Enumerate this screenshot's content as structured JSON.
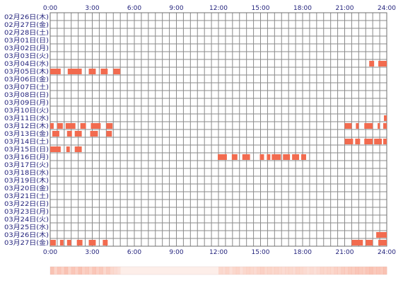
{
  "chart_data": {
    "type": "heatmap",
    "title": "",
    "xlabel": "",
    "ylabel": "",
    "x_unit": "hour of day",
    "xlim": [
      0,
      24
    ],
    "grid": true,
    "x_ticks": [
      0,
      3,
      6,
      9,
      12,
      15,
      18,
      21,
      24
    ],
    "x_tick_labels": [
      "0:00",
      "3:00",
      "6:00",
      "9:00",
      "12:00",
      "15:00",
      "18:00",
      "21:00",
      "24:00"
    ],
    "rows": [
      {
        "label": "02月26日(木)",
        "segments": []
      },
      {
        "label": "02月27日(金)",
        "segments": []
      },
      {
        "label": "02月28日(土)",
        "segments": []
      },
      {
        "label": "03月01日(日)",
        "segments": []
      },
      {
        "label": "03月02日(月)",
        "segments": []
      },
      {
        "label": "03月03日(火)",
        "segments": []
      },
      {
        "label": "03月04日(水)",
        "segments": [
          [
            22.75,
            23.1
          ],
          [
            23.4,
            24.0
          ]
        ]
      },
      {
        "label": "03月05日(木)",
        "segments": [
          [
            0.0,
            0.75
          ],
          [
            1.25,
            2.25
          ],
          [
            2.75,
            3.25
          ],
          [
            3.6,
            4.1
          ],
          [
            4.5,
            5.0
          ]
        ]
      },
      {
        "label": "03月06日(金)",
        "segments": []
      },
      {
        "label": "03月07日(土)",
        "segments": []
      },
      {
        "label": "03月08日(日)",
        "segments": []
      },
      {
        "label": "03月09日(月)",
        "segments": []
      },
      {
        "label": "03月10日(火)",
        "segments": []
      },
      {
        "label": "03月11日(水)",
        "segments": [
          [
            23.8,
            24.0
          ]
        ]
      },
      {
        "label": "03月12日(木)",
        "segments": [
          [
            0.0,
            0.25
          ],
          [
            0.5,
            0.9
          ],
          [
            1.1,
            1.8
          ],
          [
            2.15,
            2.55
          ],
          [
            2.9,
            3.6
          ],
          [
            4.0,
            4.45
          ],
          [
            21.0,
            21.5
          ],
          [
            21.8,
            22.0
          ],
          [
            22.4,
            23.0
          ],
          [
            23.35,
            23.5
          ],
          [
            23.75,
            24.0
          ]
        ]
      },
      {
        "label": "03月13日(金)",
        "segments": [
          [
            0.15,
            0.65
          ],
          [
            1.2,
            1.55
          ],
          [
            1.75,
            2.25
          ],
          [
            2.85,
            3.4
          ],
          [
            4.0,
            4.4
          ]
        ]
      },
      {
        "label": "03月14日(土)",
        "segments": [
          [
            21.0,
            21.6
          ],
          [
            21.75,
            22.1
          ],
          [
            22.4,
            23.0
          ],
          [
            23.1,
            23.65
          ],
          [
            23.75,
            24.0
          ]
        ]
      },
      {
        "label": "03月15日(日)",
        "segments": [
          [
            0.0,
            0.75
          ],
          [
            1.15,
            1.4
          ],
          [
            1.75,
            2.25
          ]
        ]
      },
      {
        "label": "03月16日(月)",
        "segments": [
          [
            11.95,
            12.6
          ],
          [
            12.95,
            13.35
          ],
          [
            13.7,
            14.25
          ],
          [
            14.95,
            15.25
          ],
          [
            15.45,
            15.7
          ],
          [
            15.8,
            16.45
          ],
          [
            16.6,
            17.1
          ],
          [
            17.25,
            17.75
          ],
          [
            17.9,
            18.25
          ]
        ]
      },
      {
        "label": "03月17日(火)",
        "segments": []
      },
      {
        "label": "03月18日(水)",
        "segments": []
      },
      {
        "label": "03月19日(木)",
        "segments": []
      },
      {
        "label": "03月20日(金)",
        "segments": []
      },
      {
        "label": "03月21日(土)",
        "segments": []
      },
      {
        "label": "03月22日(日)",
        "segments": []
      },
      {
        "label": "03月23日(月)",
        "segments": []
      },
      {
        "label": "03月24日(火)",
        "segments": []
      },
      {
        "label": "03月25日(水)",
        "segments": []
      },
      {
        "label": "03月26日(木)",
        "segments": [
          [
            23.25,
            24.0
          ]
        ]
      },
      {
        "label": "03月27日(金)",
        "segments": [
          [
            0.0,
            0.4
          ],
          [
            0.7,
            0.95
          ],
          [
            1.2,
            1.5
          ],
          [
            1.9,
            2.3
          ],
          [
            2.75,
            3.25
          ],
          [
            3.75,
            4.1
          ],
          [
            21.5,
            22.3
          ],
          [
            22.5,
            23.0
          ],
          [
            23.4,
            24.0
          ]
        ]
      }
    ],
    "summary_strip": {
      "bins_per_hour": 4,
      "intensity": [
        0.6,
        0.35,
        0.55,
        0.4,
        0.6,
        0.35,
        0.55,
        0.4,
        0.6,
        0.4,
        0.5,
        0.35,
        0.55,
        0.4,
        0.5,
        0.3,
        0.45,
        0.3,
        0.25,
        0.2,
        0,
        0,
        0,
        0,
        0,
        0,
        0,
        0,
        0,
        0,
        0,
        0,
        0,
        0,
        0,
        0,
        0,
        0,
        0,
        0,
        0,
        0,
        0,
        0,
        0,
        0,
        0,
        0,
        0.3,
        0.25,
        0.35,
        0.2,
        0.3,
        0.35,
        0.2,
        0.3,
        0.35,
        0.3,
        0.25,
        0.35,
        0.4,
        0.3,
        0.35,
        0.3,
        0.35,
        0.3,
        0.25,
        0.3,
        0.3,
        0.25,
        0.35,
        0.3,
        0.25,
        0.2,
        0.25,
        0.2,
        0.25,
        0.35,
        0.3,
        0.35,
        0.3,
        0.4,
        0.35,
        0.45,
        0.4,
        0.5,
        0.45,
        0.55,
        0.5,
        0.45,
        0.55,
        0.6,
        0.5,
        0.55,
        0.5,
        0.6
      ]
    },
    "colors": {
      "bar": "#f26b4f",
      "bar_divider": "#ffffff",
      "grid": "#8a8a8a",
      "frame": "#6f6f6f",
      "text": "#1f1f7a",
      "strip_base": "#fdeee9",
      "strip_hot": "#f7a58f"
    }
  }
}
